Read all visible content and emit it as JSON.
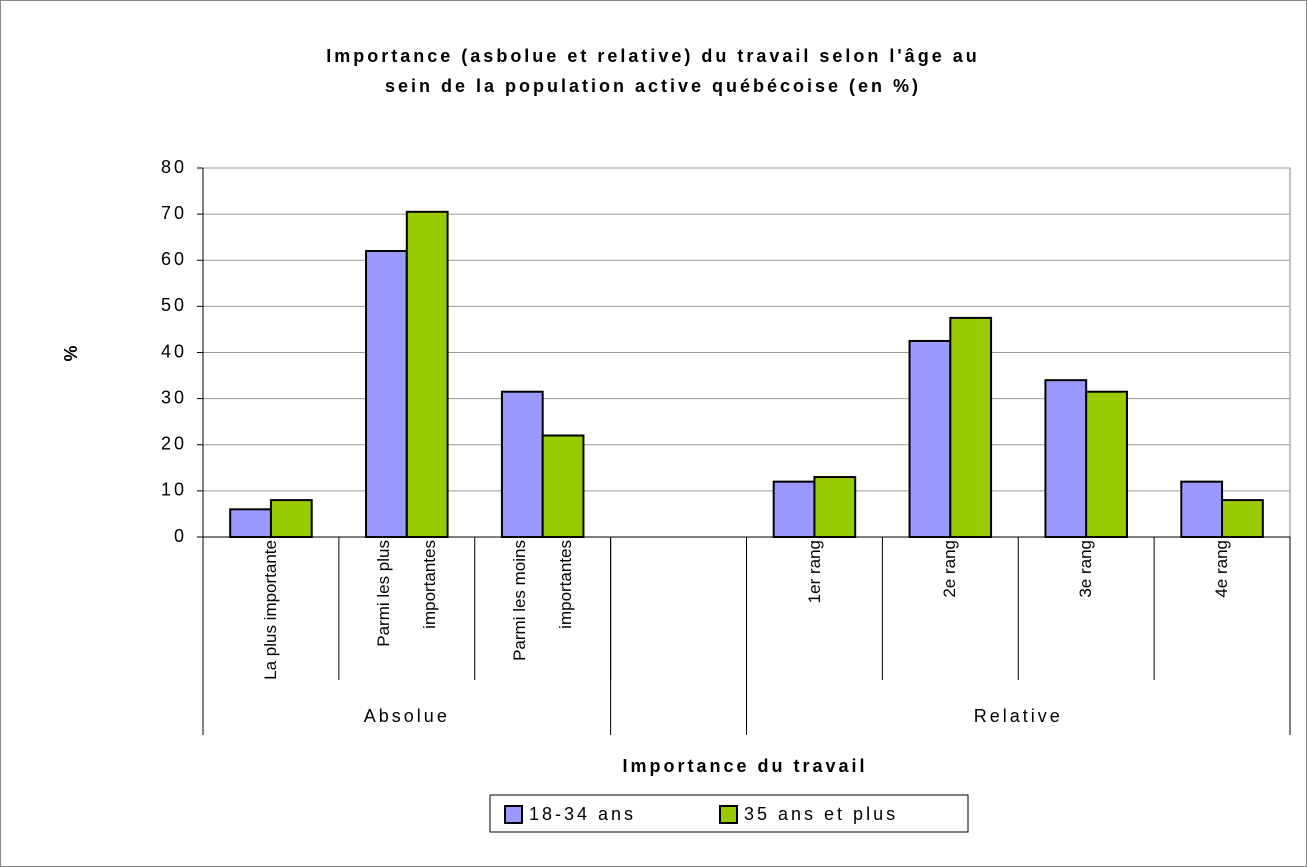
{
  "chart_data": {
    "type": "bar",
    "title": [
      "Importance (asbolue et relative) du travail selon l'âge au",
      "sein de la population active québécoise (en %)"
    ],
    "y_label": "%",
    "x_label": "Importance du travail",
    "categories": [
      "La plus importante",
      "Parmi les plus importantes",
      "Parmi les moins importantes",
      null,
      "1er rang",
      "2e rang",
      "3e rang",
      "4e rang"
    ],
    "groups": [
      {
        "name": "Absolue",
        "size": 3
      },
      {
        "name": null,
        "size": 1
      },
      {
        "name": "Relative",
        "size": 4
      }
    ],
    "series": [
      {
        "name": "18-34 ans",
        "color": "#9999ff",
        "values": [
          6,
          62,
          31.5,
          null,
          12,
          42.5,
          34,
          12
        ]
      },
      {
        "name": "35 ans et plus",
        "color": "#99cc00",
        "values": [
          8,
          70.5,
          22,
          null,
          13,
          47.5,
          31.5,
          8
        ]
      }
    ],
    "ylim": [
      0,
      80
    ],
    "yticks": [
      0,
      10,
      20,
      30,
      40,
      50,
      60,
      70,
      80
    ],
    "grid": true,
    "legend": "bottom"
  }
}
